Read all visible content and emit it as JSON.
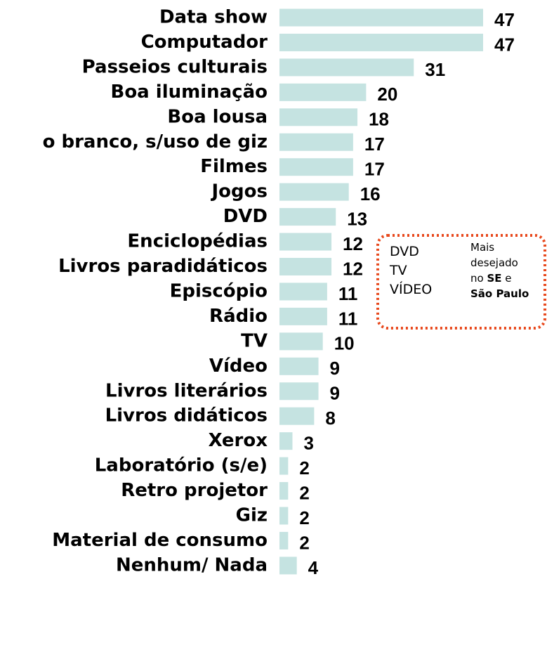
{
  "chart_data": {
    "type": "bar",
    "orientation": "horizontal",
    "color": "#c5e3e1",
    "categories": [
      "Data show",
      "Computador",
      "Passeios culturais",
      "Boa iluminação",
      "Boa lousa",
      "o branco, s/uso de giz",
      "Filmes",
      "Jogos",
      "DVD",
      "Enciclopédias",
      "Livros paradidáticos",
      "Episcópio",
      "Rádio",
      "TV",
      "Vídeo",
      "Livros literários",
      "Livros didáticos",
      "Xerox",
      "Laboratório (s/e)",
      "Retro projetor",
      "Giz",
      "Material de consumo",
      "Nenhum/ Nada"
    ],
    "values": [
      47,
      47,
      31,
      20,
      18,
      17,
      17,
      16,
      13,
      12,
      12,
      11,
      11,
      10,
      9,
      9,
      8,
      3,
      2,
      2,
      2,
      2,
      4
    ],
    "annotation": {
      "color": "#e8481c",
      "items": [
        "DVD",
        "TV",
        "VÍDEO"
      ],
      "note": [
        [
          {
            "text": "Mais",
            "bold": false
          }
        ],
        [
          {
            "text": "desejado",
            "bold": false
          }
        ],
        [
          {
            "text": "no ",
            "bold": false
          },
          {
            "text": "SE",
            "bold": true
          },
          {
            "text": " e",
            "bold": false
          }
        ],
        [
          {
            "text": "São Paulo",
            "bold": true
          }
        ]
      ]
    }
  }
}
